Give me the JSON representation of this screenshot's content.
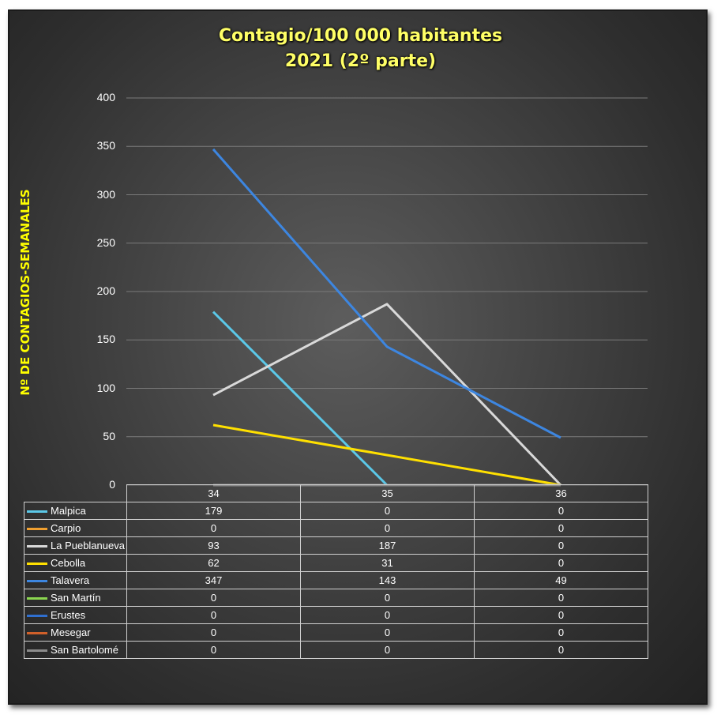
{
  "chart_data": {
    "type": "line",
    "title": "Contagio/100 000 habitantes",
    "subtitle": "2021 (2º parte)",
    "xlabel": "",
    "ylabel": "Nº DE CONTAGIOS-SEMANALES",
    "categories": [
      "34",
      "35",
      "36"
    ],
    "ylim": [
      0,
      400
    ],
    "yticks": [
      0,
      50,
      100,
      150,
      200,
      250,
      300,
      350,
      400
    ],
    "grid": true,
    "legend": "data-table-below",
    "series": [
      {
        "name": "Malpica",
        "color": "#5bc8e8",
        "values": [
          179,
          0,
          0
        ]
      },
      {
        "name": "Carpio",
        "color": "#f0a030",
        "values": [
          0,
          0,
          0
        ]
      },
      {
        "name": "La Pueblanueva",
        "color": "#d9d9d9",
        "values": [
          93,
          187,
          0
        ]
      },
      {
        "name": "Cebolla",
        "color": "#ffe000",
        "values": [
          62,
          31,
          0
        ]
      },
      {
        "name": "Talavera",
        "color": "#3d86e0",
        "values": [
          347,
          143,
          49
        ]
      },
      {
        "name": "San Martín",
        "color": "#8bd650",
        "values": [
          0,
          0,
          0
        ]
      },
      {
        "name": "Erustes",
        "color": "#2f6fd0",
        "values": [
          0,
          0,
          0
        ]
      },
      {
        "name": "Mesegar",
        "color": "#d0602a",
        "values": [
          0,
          0,
          0
        ]
      },
      {
        "name": "San Bartolomé",
        "color": "#8c8c8c",
        "values": [
          0,
          0,
          0
        ]
      }
    ]
  }
}
